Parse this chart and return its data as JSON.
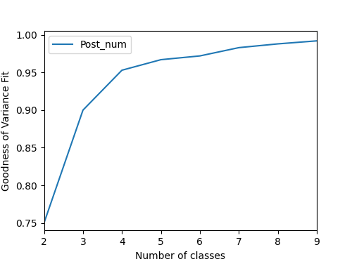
{
  "x": [
    2,
    3,
    4,
    5,
    6,
    7,
    8,
    9
  ],
  "y": [
    0.75,
    0.9,
    0.953,
    0.967,
    0.972,
    0.983,
    0.988,
    0.992
  ],
  "line_color": "#1f77b4",
  "line_width": 1.5,
  "label": "Post_num",
  "xlabel": "Number of classes",
  "ylabel": "Goodness of Variance Fit",
  "xlim": [
    2,
    9
  ],
  "ylim": [
    0.74,
    1.005
  ],
  "xticks": [
    2,
    3,
    4,
    5,
    6,
    7,
    8,
    9
  ],
  "yticks": [
    0.75,
    0.8,
    0.85,
    0.9,
    0.95,
    1.0
  ],
  "legend_loc": "upper left",
  "background_color": "#ffffff"
}
